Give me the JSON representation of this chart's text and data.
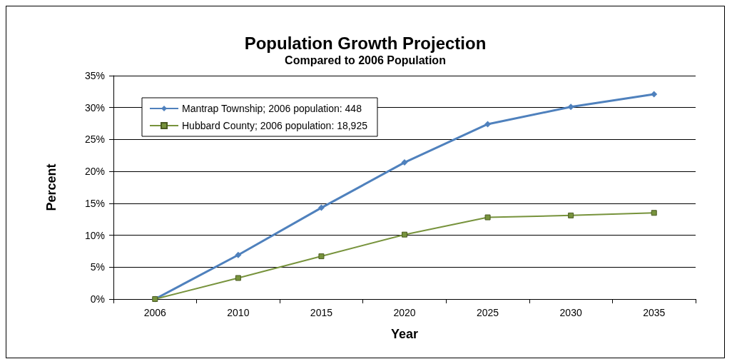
{
  "chart_data": {
    "type": "line",
    "title": "Population Growth Projection",
    "subtitle": "Compared to 2006 Population",
    "xlabel": "Year",
    "ylabel": "Percent",
    "categories": [
      "2006",
      "2010",
      "2015",
      "2020",
      "2025",
      "2030",
      "2035"
    ],
    "series": [
      {
        "name": "Mantrap Township; 2006 population: 448",
        "color": "#4f81bd",
        "marker": "diamond",
        "values": [
          0,
          6.9,
          14.3,
          21.4,
          27.4,
          30.1,
          32.1
        ]
      },
      {
        "name": "Hubbard County; 2006 population: 18,925",
        "color": "#77933c",
        "marker": "square",
        "values": [
          0,
          3.3,
          6.7,
          10.1,
          12.8,
          13.1,
          13.5
        ]
      }
    ],
    "ylim": [
      0,
      35
    ],
    "yticks": [
      {
        "value": 0,
        "label": "0%"
      },
      {
        "value": 5,
        "label": "5%"
      },
      {
        "value": 10,
        "label": "10%"
      },
      {
        "value": 15,
        "label": "15%"
      },
      {
        "value": 20,
        "label": "20%"
      },
      {
        "value": 25,
        "label": "25%"
      },
      {
        "value": 30,
        "label": "30%"
      },
      {
        "value": 35,
        "label": "35%"
      }
    ],
    "grid": "y",
    "legend": "top left"
  }
}
